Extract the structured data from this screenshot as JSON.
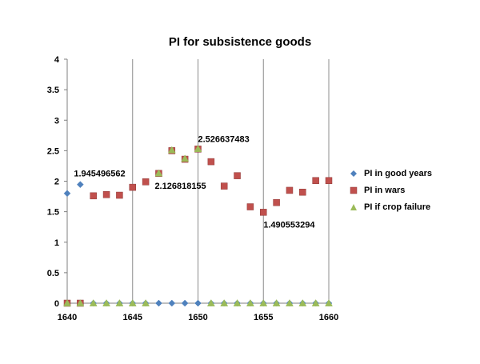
{
  "chart_data": {
    "type": "scatter",
    "title": "PI for subsistence goods",
    "xlabel": "",
    "ylabel": "",
    "xlim": [
      1640,
      1660
    ],
    "ylim": [
      0,
      4
    ],
    "x_ticks": [
      1640,
      1645,
      1650,
      1655,
      1660
    ],
    "y_ticks": [
      0,
      0.5,
      1,
      1.5,
      2,
      2.5,
      3,
      3.5,
      4
    ],
    "grid": "vertical",
    "legend_position": "right",
    "series": [
      {
        "name": "PI in good years",
        "marker": "diamond",
        "color": "#4f81bd",
        "x": [
          1640,
          1641,
          1642,
          1643,
          1644,
          1645,
          1646,
          1647,
          1648,
          1649,
          1650,
          1651,
          1652,
          1653,
          1654,
          1655,
          1656,
          1657,
          1658,
          1659,
          1660
        ],
        "y": [
          1.8,
          1.945496562,
          0,
          0,
          0,
          0,
          0,
          0,
          0,
          0,
          0,
          0,
          0,
          0,
          0,
          0,
          0,
          0,
          0,
          0,
          0
        ]
      },
      {
        "name": "PI in wars",
        "marker": "square",
        "color": "#c0504d",
        "x": [
          1640,
          1641,
          1642,
          1643,
          1644,
          1645,
          1646,
          1647,
          1648,
          1649,
          1650,
          1651,
          1652,
          1653,
          1654,
          1655,
          1656,
          1657,
          1658,
          1659,
          1660
        ],
        "y": [
          0,
          0,
          1.76,
          1.78,
          1.77,
          1.9,
          1.99,
          2.126818155,
          2.5,
          2.36,
          2.526637483,
          2.32,
          1.92,
          2.09,
          1.58,
          1.490553294,
          1.65,
          1.85,
          1.82,
          2.01,
          2.01
        ]
      },
      {
        "name": "PI if crop failure",
        "marker": "triangle",
        "color": "#9bbb59",
        "x": [
          1640,
          1641,
          1642,
          1643,
          1644,
          1645,
          1646,
          1647,
          1648,
          1649,
          1650,
          1651,
          1652,
          1653,
          1654,
          1655,
          1656,
          1657,
          1658,
          1659,
          1660
        ],
        "y": [
          0,
          0,
          0,
          0,
          0,
          0,
          0,
          2.13,
          2.51,
          2.37,
          2.53,
          0,
          0,
          0,
          0,
          0,
          0,
          0,
          0,
          0,
          0
        ]
      }
    ],
    "annotations": [
      {
        "text": "1.945496562",
        "x": 1641,
        "y": 1.945496562,
        "anchor": "above"
      },
      {
        "text": "2.126818155",
        "x": 1647,
        "y": 2.126818155,
        "anchor": "below"
      },
      {
        "text": "2.526637483",
        "x": 1650,
        "y": 2.526637483,
        "anchor": "above-right"
      },
      {
        "text": "1.490553294",
        "x": 1655,
        "y": 1.490553294,
        "anchor": "below-right"
      }
    ]
  }
}
